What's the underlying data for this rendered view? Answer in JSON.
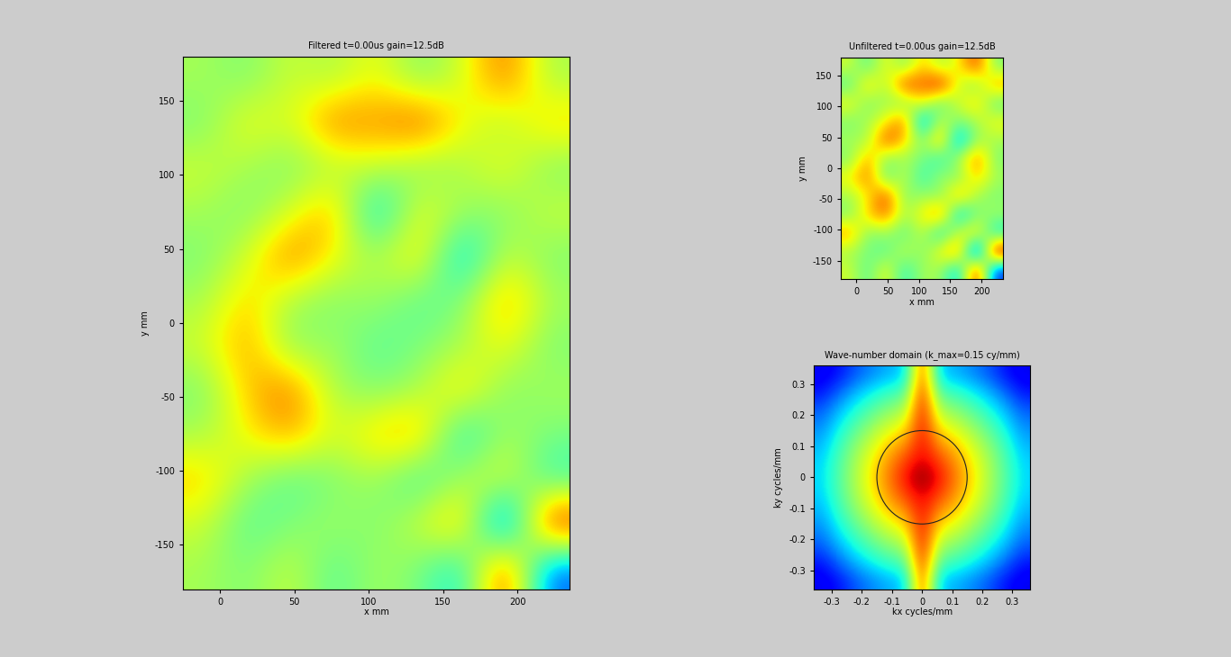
{
  "chart_data": [
    {
      "type": "heatmap",
      "title": "Filtered t=0.00us gain=12.5dB",
      "x_label": "x mm",
      "y_label": "y mm",
      "xlim": [
        -25,
        235
      ],
      "ylim": [
        -180,
        180
      ],
      "xticks": [
        0,
        50,
        100,
        150,
        200
      ],
      "yticks": [
        -150,
        -100,
        -50,
        0,
        50,
        100,
        150
      ],
      "value_range": [
        -1,
        1
      ],
      "cells": [
        [
          0.1,
          0.0,
          0.2,
          -0.1,
          0.1,
          0.0,
          -0.3,
          0.8,
          -0.6
        ],
        [
          0.2,
          -0.1,
          0.0,
          0.1,
          0.0,
          0.2,
          0.5,
          -0.8,
          0.9
        ],
        [
          0.4,
          0.1,
          -0.1,
          0.0,
          0.1,
          -0.2,
          0.1,
          0.3,
          -0.2
        ],
        [
          0.1,
          0.3,
          0.5,
          0.2,
          0.4,
          0.5,
          -0.3,
          0.1,
          0.0
        ],
        [
          0.0,
          0.4,
          0.6,
          0.1,
          0.0,
          0.1,
          0.4,
          0.0,
          0.1
        ],
        [
          0.2,
          0.5,
          0.0,
          0.1,
          -0.1,
          0.0,
          0.1,
          0.3,
          0.0
        ],
        [
          0.1,
          0.4,
          0.1,
          0.0,
          0.1,
          -0.1,
          0.0,
          0.5,
          0.1
        ],
        [
          0.0,
          0.2,
          0.6,
          0.3,
          0.1,
          0.4,
          -0.4,
          0.2,
          0.0
        ],
        [
          0.1,
          0.0,
          0.2,
          0.5,
          -0.4,
          0.3,
          0.1,
          0.0,
          0.2
        ],
        [
          0.2,
          0.1,
          0.0,
          0.1,
          0.2,
          0.0,
          0.1,
          0.3,
          0.0
        ],
        [
          0.0,
          0.3,
          0.2,
          0.6,
          0.5,
          0.7,
          0.3,
          0.1,
          0.4
        ],
        [
          0.1,
          0.0,
          0.2,
          0.1,
          0.3,
          0.0,
          0.2,
          0.6,
          0.1
        ]
      ]
    },
    {
      "type": "heatmap",
      "title": "Unfiltered t=0.00us gain=12.5dB",
      "x_label": "x mm",
      "y_label": "y mm",
      "xlim": [
        -25,
        235
      ],
      "ylim": [
        -180,
        180
      ],
      "xticks": [
        0,
        50,
        100,
        150,
        200
      ],
      "yticks": [
        -150,
        -100,
        -50,
        0,
        50,
        100,
        150
      ],
      "value_range": [
        -1,
        1
      ],
      "cells": [
        [
          0.2,
          -0.1,
          0.3,
          -0.2,
          0.1,
          0.1,
          -0.4,
          0.9,
          -0.7
        ],
        [
          0.1,
          0.0,
          -0.1,
          0.2,
          0.0,
          0.3,
          0.6,
          -0.9,
          1.0
        ],
        [
          0.5,
          0.0,
          0.1,
          -0.1,
          0.2,
          -0.3,
          0.2,
          0.4,
          -0.3
        ],
        [
          0.0,
          0.4,
          0.6,
          0.1,
          0.3,
          0.6,
          -0.4,
          0.0,
          0.1
        ],
        [
          0.1,
          0.3,
          0.7,
          0.0,
          0.1,
          0.0,
          0.5,
          0.1,
          0.0
        ],
        [
          0.3,
          0.6,
          -0.1,
          0.2,
          -0.2,
          0.1,
          0.0,
          0.4,
          0.1
        ],
        [
          0.0,
          0.5,
          0.0,
          0.1,
          0.0,
          -0.2,
          0.1,
          0.6,
          0.0
        ],
        [
          0.1,
          0.1,
          0.7,
          0.4,
          0.0,
          0.5,
          -0.5,
          0.1,
          0.1
        ],
        [
          0.0,
          0.1,
          0.3,
          0.6,
          -0.5,
          0.2,
          0.0,
          0.1,
          0.3
        ],
        [
          0.3,
          0.0,
          0.1,
          0.0,
          0.3,
          -0.1,
          0.2,
          0.4,
          -0.1
        ],
        [
          -0.1,
          0.4,
          0.1,
          0.7,
          0.6,
          0.8,
          0.2,
          0.0,
          0.5
        ],
        [
          0.2,
          -0.1,
          0.3,
          0.0,
          0.4,
          0.1,
          0.3,
          0.7,
          0.0
        ]
      ]
    },
    {
      "type": "heatmap",
      "title": "Wave-number domain (k_max=0.15 cy/mm)",
      "x_label": "kx cycles/mm",
      "y_label": "ky cycles/mm",
      "xlim": [
        -0.36,
        0.36
      ],
      "ylim": [
        -0.36,
        0.36
      ],
      "xticks": [
        -0.3,
        -0.2,
        -0.1,
        0,
        0.1,
        0.2,
        0.3
      ],
      "yticks": [
        -0.3,
        -0.2,
        -0.1,
        0,
        0.1,
        0.2,
        0.3
      ],
      "value_range": [
        0,
        1
      ],
      "k_max": 0.15,
      "cells": [
        [
          0.1,
          0.14,
          0.21,
          0.26,
          0.3,
          0.33,
          0.85,
          0.33,
          0.3,
          0.26,
          0.21,
          0.14,
          0.1
        ],
        [
          0.14,
          0.22,
          0.3,
          0.36,
          0.41,
          0.44,
          0.88,
          0.44,
          0.41,
          0.36,
          0.3,
          0.22,
          0.14
        ],
        [
          0.21,
          0.3,
          0.38,
          0.45,
          0.51,
          0.55,
          0.9,
          0.55,
          0.51,
          0.45,
          0.38,
          0.3,
          0.21
        ],
        [
          0.26,
          0.36,
          0.45,
          0.53,
          0.6,
          0.65,
          0.9,
          0.65,
          0.6,
          0.53,
          0.45,
          0.36,
          0.26
        ],
        [
          0.3,
          0.41,
          0.51,
          0.6,
          0.69,
          0.75,
          0.9,
          0.75,
          0.69,
          0.6,
          0.51,
          0.41,
          0.3
        ],
        [
          0.33,
          0.44,
          0.55,
          0.65,
          0.75,
          0.84,
          0.92,
          0.84,
          0.75,
          0.65,
          0.55,
          0.44,
          0.33
        ],
        [
          0.34,
          0.45,
          0.56,
          0.67,
          0.78,
          0.89,
          1.0,
          0.89,
          0.78,
          0.67,
          0.56,
          0.45,
          0.34
        ],
        [
          0.33,
          0.44,
          0.55,
          0.65,
          0.75,
          0.84,
          0.92,
          0.84,
          0.75,
          0.65,
          0.55,
          0.44,
          0.33
        ],
        [
          0.3,
          0.41,
          0.51,
          0.6,
          0.69,
          0.75,
          0.9,
          0.75,
          0.69,
          0.6,
          0.51,
          0.41,
          0.3
        ],
        [
          0.26,
          0.36,
          0.45,
          0.53,
          0.6,
          0.65,
          0.9,
          0.65,
          0.6,
          0.53,
          0.45,
          0.36,
          0.26
        ],
        [
          0.21,
          0.3,
          0.38,
          0.45,
          0.51,
          0.55,
          0.9,
          0.55,
          0.51,
          0.45,
          0.38,
          0.3,
          0.21
        ],
        [
          0.14,
          0.22,
          0.3,
          0.36,
          0.41,
          0.44,
          0.88,
          0.44,
          0.41,
          0.36,
          0.3,
          0.22,
          0.14
        ],
        [
          0.1,
          0.14,
          0.21,
          0.26,
          0.3,
          0.33,
          0.85,
          0.33,
          0.3,
          0.26,
          0.21,
          0.14,
          0.1
        ]
      ]
    }
  ]
}
